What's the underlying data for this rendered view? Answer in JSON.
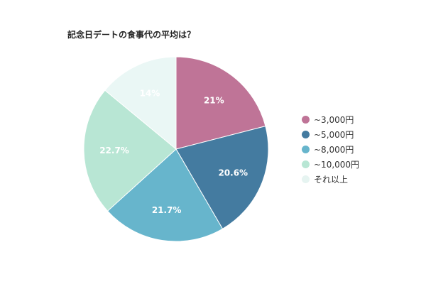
{
  "chart_data": {
    "type": "pie",
    "title": "記念日デートの食事代の平均は？",
    "slices": [
      {
        "label": "~3,000円",
        "value": 21,
        "display": "21%",
        "color": "#bf7497"
      },
      {
        "label": "~5,000円",
        "value": 20.6,
        "display": "20.6%",
        "color": "#447ba0"
      },
      {
        "label": "~8,000円",
        "value": 21.7,
        "display": "21.7%",
        "color": "#67b5cc"
      },
      {
        "label": "~10,000円",
        "value": 22.7,
        "display": "22.7%",
        "color": "#b8e6d4"
      },
      {
        "label": "それ以上",
        "value": 14,
        "display": "14%",
        "color": "#eaf7f5"
      }
    ],
    "start_angle": "12 o'clock",
    "direction": "clockwise",
    "legend_position": "right"
  }
}
